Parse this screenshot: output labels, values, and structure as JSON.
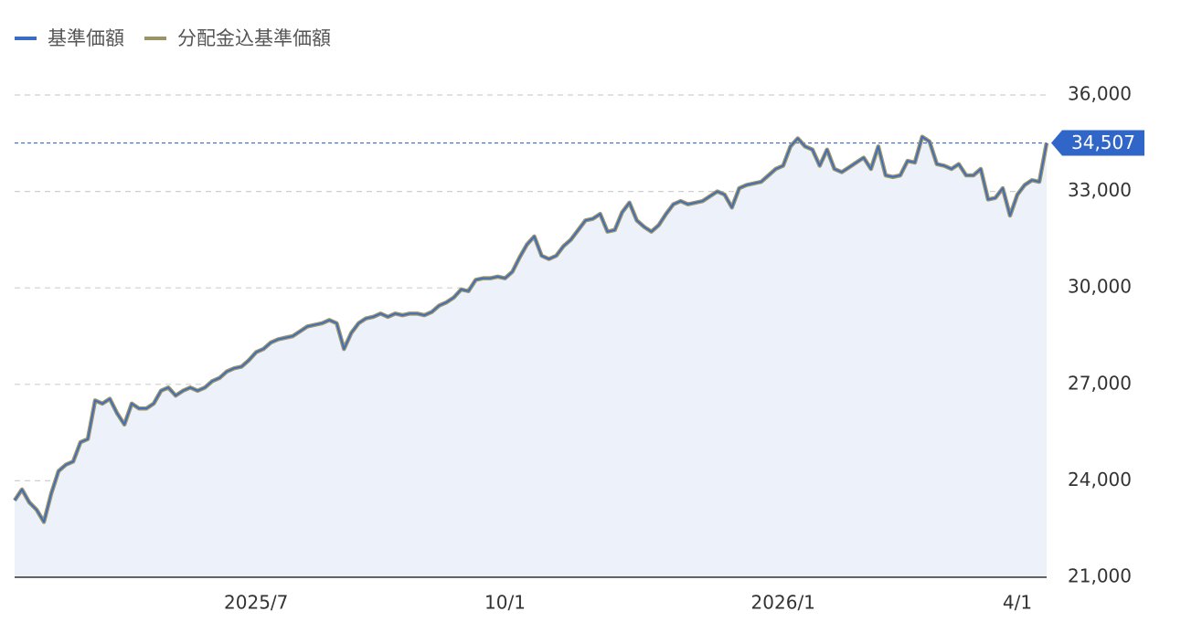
{
  "chart_data": {
    "type": "line",
    "x": [
      0,
      2,
      4,
      6,
      8,
      10,
      12,
      14,
      16,
      18,
      20,
      22,
      24,
      26,
      28,
      30,
      32,
      34,
      36,
      38,
      40,
      42,
      44,
      46,
      48,
      50,
      52,
      54,
      56,
      58,
      60,
      62,
      64,
      66,
      68,
      70,
      72,
      74,
      76,
      78,
      80,
      82,
      84,
      86,
      88,
      90,
      92,
      94,
      96,
      98,
      100,
      102,
      104,
      106,
      108,
      110,
      112,
      114,
      116,
      118,
      120,
      122,
      124,
      126,
      128,
      130,
      132,
      134,
      136,
      138,
      140,
      142,
      144,
      146,
      148,
      150,
      152,
      154,
      156,
      158,
      160,
      162,
      164,
      166,
      168,
      170,
      172,
      174,
      176,
      178,
      180,
      182,
      184,
      186,
      188,
      190,
      192,
      194,
      196,
      198,
      200,
      202,
      204,
      206,
      208,
      210,
      212,
      214,
      216,
      218,
      220,
      222,
      224,
      226,
      228,
      230,
      232,
      234,
      236,
      238,
      240,
      242,
      244,
      246,
      248,
      250,
      252,
      254,
      256,
      258,
      260,
      262,
      264,
      266,
      268,
      270,
      272,
      274,
      276,
      278,
      280,
      282
    ],
    "series": [
      {
        "name": "基準価額",
        "color": "#3b6cc4",
        "values": [
          23390,
          23730,
          23330,
          23100,
          22720,
          23600,
          24300,
          24500,
          24600,
          25200,
          25300,
          26500,
          26400,
          26550,
          26100,
          25750,
          26400,
          26250,
          26250,
          26400,
          26800,
          26900,
          26650,
          26800,
          26900,
          26800,
          26900,
          27100,
          27200,
          27400,
          27500,
          27550,
          27750,
          28000,
          28100,
          28300,
          28400,
          28450,
          28500,
          28650,
          28800,
          28850,
          28900,
          29000,
          28900,
          28100,
          28600,
          28900,
          29050,
          29100,
          29200,
          29100,
          29200,
          29150,
          29200,
          29200,
          29150,
          29250,
          29450,
          29550,
          29700,
          29950,
          29900,
          30250,
          30300,
          30300,
          30350,
          30300,
          30500,
          30950,
          31350,
          31600,
          31000,
          30900,
          31000,
          31300,
          31500,
          31800,
          32100,
          32150,
          32300,
          31750,
          31800,
          32350,
          32650,
          32100,
          31900,
          31750,
          31950,
          32300,
          32600,
          32700,
          32600,
          32650,
          32700,
          32850,
          33000,
          32900,
          32500,
          33100,
          33200,
          33250,
          33300,
          33500,
          33700,
          33800,
          34400,
          34650,
          34400,
          34300,
          33800,
          34300,
          33700,
          33600,
          33750,
          33900,
          34050,
          33700,
          34400,
          33500,
          33450,
          33500,
          33950,
          33900,
          34700,
          34550,
          33850,
          33800,
          33700,
          33850,
          33500,
          33500,
          33700,
          32750,
          32800,
          33100,
          32250,
          32900,
          33200,
          33350,
          33300,
          34507
        ]
      },
      {
        "name": "分配金込基準価額",
        "color": "#9c9466",
        "values": [
          23390,
          23730,
          23330,
          23100,
          22720,
          23600,
          24300,
          24500,
          24600,
          25200,
          25300,
          26500,
          26400,
          26550,
          26100,
          25750,
          26400,
          26250,
          26250,
          26400,
          26800,
          26900,
          26650,
          26800,
          26900,
          26800,
          26900,
          27100,
          27200,
          27400,
          27500,
          27550,
          27750,
          28000,
          28100,
          28300,
          28400,
          28450,
          28500,
          28650,
          28800,
          28850,
          28900,
          29000,
          28900,
          28100,
          28600,
          28900,
          29050,
          29100,
          29200,
          29100,
          29200,
          29150,
          29200,
          29200,
          29150,
          29250,
          29450,
          29550,
          29700,
          29950,
          29900,
          30250,
          30300,
          30300,
          30350,
          30300,
          30500,
          30950,
          31350,
          31600,
          31000,
          30900,
          31000,
          31300,
          31500,
          31800,
          32100,
          32150,
          32300,
          31750,
          31800,
          32350,
          32650,
          32100,
          31900,
          31750,
          31950,
          32300,
          32600,
          32700,
          32600,
          32650,
          32700,
          32850,
          33000,
          32900,
          32500,
          33100,
          33200,
          33250,
          33300,
          33500,
          33700,
          33800,
          34400,
          34650,
          34400,
          34300,
          33800,
          34300,
          33700,
          33600,
          33750,
          33900,
          34050,
          33700,
          34400,
          33500,
          33450,
          33500,
          33950,
          33900,
          34700,
          34550,
          33850,
          33800,
          33700,
          33850,
          33500,
          33500,
          33700,
          32750,
          32800,
          33100,
          32250,
          32900,
          33200,
          33350,
          33300,
          34507
        ]
      }
    ],
    "xlim": [
      0,
      282
    ],
    "xticks": [
      {
        "value": 66,
        "label": "2025/7"
      },
      {
        "value": 134,
        "label": "10/1"
      },
      {
        "value": 210,
        "label": "2026/1"
      },
      {
        "value": 274,
        "label": "4/1"
      }
    ],
    "ylim": [
      21000,
      36000
    ],
    "yticks": [
      {
        "value": 21000,
        "label": "21,000"
      },
      {
        "value": 24000,
        "label": "24,000"
      },
      {
        "value": 27000,
        "label": "27,000"
      },
      {
        "value": 30000,
        "label": "30,000"
      },
      {
        "value": 33000,
        "label": "33,000"
      },
      {
        "value": 36000,
        "label": "36,000"
      }
    ],
    "grid": true,
    "area_color": "#edf1fa",
    "annotations": [
      {
        "value": 34507,
        "label": "34,507"
      }
    ]
  }
}
